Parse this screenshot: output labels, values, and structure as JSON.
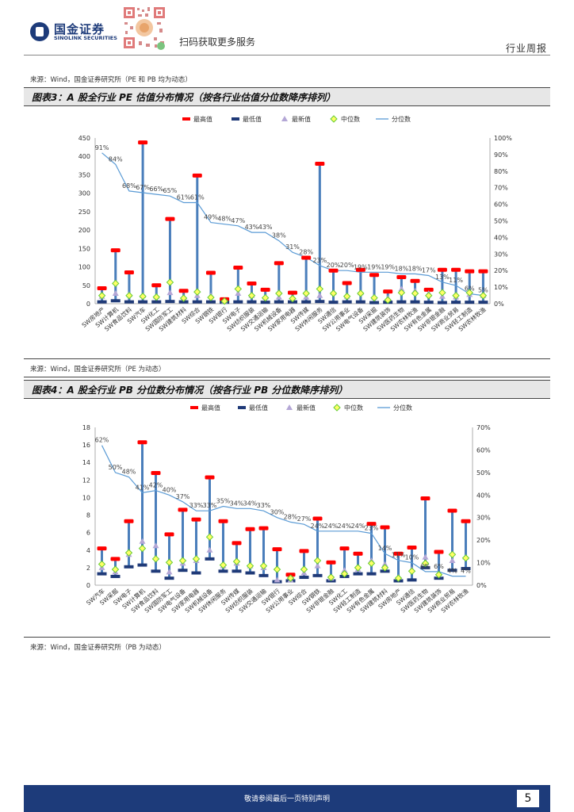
{
  "header": {
    "logo_cn": "国金证券",
    "logo_en": "SINOLINK SECURITIES",
    "scan_text": "扫码获取更多服务",
    "report_type": "行业周报"
  },
  "top_source": "来源：Wind，国金证券研究所（PE 和 PB 均为动态）",
  "legend": {
    "max": "最高值",
    "min": "最低值",
    "latest": "最新值",
    "median": "中位数",
    "pct": "分位数"
  },
  "colors": {
    "max": "#ff0000",
    "min": "#1f3a78",
    "latest": "#b4a7d6",
    "median": "#66cc33",
    "bar": "#4a7ebb",
    "pct": "#5b9bd5",
    "footer": "#1d3b7a"
  },
  "chart_data": [
    {
      "type": "box-range",
      "title": "图表3：A 股全行业 PE 估值分布情况（按各行业估值分位数降序排列）",
      "source": "来源：Wind，国金证券研究所（PE 为动态）",
      "ylim": [
        0,
        450
      ],
      "y2lim": [
        0,
        100
      ],
      "y_ticks": [
        "0",
        "50",
        "100",
        "150",
        "200",
        "250",
        "300",
        "350",
        "400",
        "450"
      ],
      "y2_ticks": [
        "0%",
        "10%",
        "20%",
        "30%",
        "40%",
        "50%",
        "60%",
        "70%",
        "80%",
        "90%",
        "100%"
      ],
      "categories": [
        "SW房地产",
        "SW计算机",
        "SW食品饮料",
        "SW汽车",
        "SW化工",
        "SW国防军工",
        "SW建筑材料",
        "SW综合",
        "SW钢铁",
        "SW银行",
        "SW电子",
        "SW纺织服装",
        "SW交通运输",
        "SW机械设备",
        "SW家用电器",
        "SW传媒",
        "SW休闲服务",
        "SW通信",
        "SW公用事业",
        "SW电气设备",
        "SW采掘",
        "SW建筑装饰",
        "SW医药生物",
        "SW农林牧渔",
        "SW有色金属",
        "SW非银金融",
        "SW商业贸易",
        "SW轻工制造",
        "SW农林牧渔"
      ],
      "series": [
        {
          "name": "最高值",
          "values": [
            42,
            145,
            85,
            438,
            50,
            230,
            35,
            348,
            84,
            12,
            98,
            55,
            38,
            110,
            30,
            125,
            380,
            90,
            56,
            92,
            78,
            33,
            72,
            62,
            38,
            92,
            92,
            88,
            88
          ]
        },
        {
          "name": "最低值",
          "values": [
            5,
            8,
            5,
            5,
            5,
            6,
            5,
            5,
            5,
            4,
            5,
            5,
            4,
            5,
            5,
            5,
            6,
            4,
            5,
            5,
            3,
            4,
            5,
            5,
            4,
            3,
            4,
            4,
            4
          ]
        },
        {
          "name": "最新值",
          "values": [
            20,
            28,
            25,
            22,
            20,
            30,
            17,
            22,
            22,
            7,
            28,
            22,
            18,
            18,
            15,
            18,
            22,
            30,
            20,
            30,
            18,
            15,
            40,
            35,
            28,
            20,
            18,
            25,
            22
          ]
        },
        {
          "name": "中位数",
          "values": [
            22,
            55,
            22,
            20,
            18,
            58,
            15,
            32,
            17,
            7,
            40,
            22,
            16,
            28,
            14,
            28,
            40,
            28,
            20,
            28,
            16,
            10,
            30,
            28,
            22,
            30,
            22,
            30,
            22
          ]
        },
        {
          "name": "分位数",
          "values": [
            91,
            84,
            68,
            67,
            66,
            65,
            61,
            61,
            49,
            48,
            47,
            43,
            43,
            38,
            31,
            28,
            23,
            20,
            20,
            19,
            19,
            19,
            18,
            18,
            17,
            13,
            11,
            6,
            5
          ]
        }
      ],
      "pct_labels": [
        "91%",
        "84%",
        "68%",
        "67%",
        "66%",
        "65%",
        "61%",
        "61%",
        "49%",
        "48%",
        "47%",
        "43%",
        "43%",
        "38%",
        "31%",
        "28%",
        "23%",
        "20%",
        "20%",
        "19%",
        "19%",
        "19%",
        "18%",
        "18%",
        "17%",
        "13%",
        "11%",
        "6%",
        "5%"
      ]
    },
    {
      "type": "box-range",
      "title": "图表4：A 股全行业 PB 分位数分布情况（按各行业 PB 分位数降序排列）",
      "source": "来源：Wind，国金证券研究所（PB 为动态）",
      "ylim": [
        0,
        18
      ],
      "y2lim": [
        0,
        70
      ],
      "y_ticks": [
        "0",
        "2",
        "4",
        "6",
        "8",
        "10",
        "12",
        "14",
        "16",
        "18"
      ],
      "y2_ticks": [
        "0%",
        "10%",
        "20%",
        "30%",
        "40%",
        "50%",
        "60%",
        "70%"
      ],
      "categories": [
        "SW汽车",
        "SW采掘",
        "SW电子",
        "SW计算机",
        "SW食品饮料",
        "SW国防军工",
        "SW电气设备",
        "SW家用电器",
        "SW机械设备",
        "SW休闲服务",
        "SW传媒",
        "SW纺织服装",
        "SW交通运输",
        "SW银行",
        "SW公用事业",
        "SW综合",
        "SW钢铁",
        "SW非银金融",
        "SW化工",
        "SW轻工制造",
        "SW有色金属",
        "SW建筑材料",
        "SW房地产",
        "SW通信",
        "SW医药生物",
        "SW建筑装饰",
        "SW商业贸易",
        "SW农林牧渔"
      ],
      "series": [
        {
          "name": "最高值",
          "values": [
            4.2,
            3.0,
            7.3,
            16.3,
            12.8,
            5.8,
            8.6,
            7.5,
            12.3,
            7.3,
            4.8,
            6.4,
            6.5,
            4.1,
            1.2,
            3.9,
            7.6,
            2.6,
            4.2,
            3.6,
            7.0,
            6.6,
            3.6,
            4.3,
            9.9,
            3.8,
            8.5,
            7.3
          ]
        },
        {
          "name": "最低值",
          "values": [
            1.3,
            1.0,
            2.1,
            2.3,
            1.6,
            0.8,
            1.7,
            1.4,
            3.0,
            1.6,
            1.6,
            1.4,
            1.1,
            0.4,
            0.5,
            0.9,
            1.1,
            0.5,
            1.0,
            1.3,
            1.3,
            1.6,
            0.5,
            0.6,
            2.0,
            0.8,
            1.7,
            1.9
          ]
        },
        {
          "name": "最新值",
          "values": [
            2.0,
            1.5,
            3.5,
            5.0,
            4.5,
            1.5,
            2.5,
            2.8,
            4.0,
            2.2,
            2.5,
            2.2,
            2.0,
            0.6,
            0.6,
            1.4,
            2.2,
            0.8,
            1.7,
            1.8,
            2.8,
            2.4,
            0.9,
            1.8,
            3.2,
            1.2,
            2.8,
            3.2
          ]
        },
        {
          "name": "中位数",
          "values": [
            2.4,
            1.8,
            3.7,
            4.2,
            3.0,
            2.6,
            2.8,
            3.0,
            5.5,
            2.3,
            2.7,
            2.2,
            2.2,
            1.8,
            0.8,
            1.8,
            2.8,
            0.9,
            1.3,
            2.0,
            2.5,
            2.0,
            0.8,
            1.6,
            2.5,
            1.2,
            3.5,
            3.1
          ]
        },
        {
          "name": "分位数",
          "values": [
            62,
            50,
            48,
            41,
            42,
            40,
            37,
            33,
            33,
            35,
            34,
            34,
            33,
            30,
            28,
            27,
            24,
            24,
            24,
            24,
            23,
            14,
            11,
            10,
            6,
            6,
            4,
            4
          ]
        }
      ],
      "pct_labels": [
        "62%",
        "50%",
        "48%",
        "41%",
        "42%",
        "40%",
        "37%",
        "33%",
        "33%",
        "35%",
        "34%",
        "34%",
        "33%",
        "30%",
        "28%",
        "27%",
        "24%",
        "24%",
        "24%",
        "24%",
        "23%",
        "14%",
        "11%",
        "10%",
        "6%",
        "6%",
        "4%",
        "4%"
      ]
    }
  ],
  "footer": {
    "text": "敬请参阅最后一页特别声明",
    "page": "5"
  }
}
